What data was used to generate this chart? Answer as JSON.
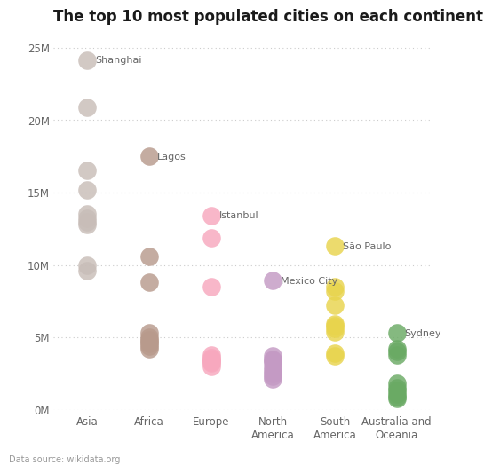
{
  "title": "The top 10 most populated cities on each continent",
  "source": "Data source: wikidata.org",
  "continents": [
    "Asia",
    "Africa",
    "Europe",
    "North\nAmerica",
    "South\nAmerica",
    "Australia and\nOceania"
  ],
  "colors": [
    "#c8bdb8",
    "#b89a8c",
    "#f7a8be",
    "#c49ac4",
    "#e8d44d",
    "#6aaa64"
  ],
  "data": {
    "Asia": [
      24.15,
      20.9,
      16.5,
      15.2,
      13.5,
      13.2,
      13.0,
      12.8,
      10.0,
      9.6
    ],
    "Africa": [
      17.5,
      10.6,
      8.8,
      5.3,
      5.0,
      4.8,
      4.7,
      4.6,
      4.4,
      4.2
    ],
    "Europe": [
      13.4,
      11.9,
      8.5,
      3.8,
      3.6,
      3.5,
      3.4,
      3.3,
      3.2,
      3.0
    ],
    "North\nAmerica": [
      8.9,
      3.7,
      3.5,
      3.4,
      3.2,
      2.9,
      2.7,
      2.5,
      2.3,
      2.1
    ],
    "South\nAmerica": [
      11.3,
      8.5,
      8.2,
      7.2,
      5.9,
      5.8,
      5.6,
      5.4,
      3.9,
      3.7
    ],
    "Australia and\nOceania": [
      5.3,
      4.2,
      4.0,
      3.8,
      1.8,
      1.5,
      1.3,
      1.1,
      0.9,
      0.8
    ]
  },
  "city_labels": [
    {
      "continent_idx": 0,
      "city": "Shanghai",
      "value": 24.15
    },
    {
      "continent_idx": 1,
      "city": "Lagos",
      "value": 17.5
    },
    {
      "continent_idx": 2,
      "city": "Istanbul",
      "value": 13.4
    },
    {
      "continent_idx": 3,
      "city": "Mexico City",
      "value": 8.9
    },
    {
      "continent_idx": 4,
      "city": "São Paulo",
      "value": 11.3
    },
    {
      "continent_idx": 5,
      "city": "Sydney",
      "value": 5.3
    }
  ],
  "ylim": [
    0,
    26
  ],
  "yticks": [
    0,
    5,
    10,
    15,
    20,
    25
  ],
  "ytick_labels": [
    "0M",
    "5M",
    "10M",
    "15M",
    "20M",
    "25M"
  ],
  "dot_size": 220,
  "background_color": "#ffffff",
  "text_color": "#666666",
  "grid_color": "#cccccc",
  "title_fontsize": 12,
  "label_fontsize": 8,
  "tick_fontsize": 8.5
}
